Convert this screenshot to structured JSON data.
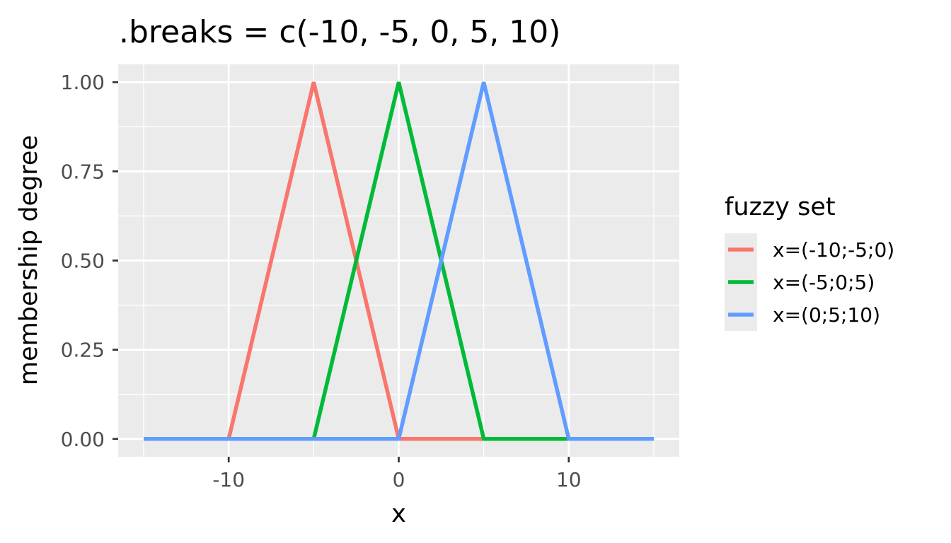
{
  "chart_data": {
    "type": "line",
    "title": ".breaks = c(-10, -5, 0, 5, 10)",
    "xlabel": "x",
    "ylabel": "membership degree",
    "xlim": [
      -16.5,
      16.5
    ],
    "ylim": [
      -0.05,
      1.05
    ],
    "x_ticks": [
      -10,
      0,
      10
    ],
    "x_tick_labels": [
      "-10",
      "0",
      "10"
    ],
    "y_ticks": [
      0,
      0.25,
      0.5,
      0.75,
      1
    ],
    "y_tick_labels": [
      "0.00",
      "0.25",
      "0.50",
      "0.75",
      "1.00"
    ],
    "x_minor_ticks": [
      -15,
      -5,
      5,
      15
    ],
    "y_minor_ticks": [
      0.125,
      0.375,
      0.625,
      0.875
    ],
    "grid": true,
    "legend": {
      "title": "fuzzy set",
      "placement": "right"
    },
    "series": [
      {
        "name": "x=(-10;-5;0)",
        "color": "#F8766D",
        "x": [
          -15,
          -10,
          -5,
          0,
          15
        ],
        "y": [
          0,
          0,
          1,
          0,
          0
        ]
      },
      {
        "name": "x=(-5;0;5)",
        "color": "#00BA38",
        "x": [
          -15,
          -5,
          0,
          5,
          15
        ],
        "y": [
          0,
          0,
          1,
          0,
          0
        ]
      },
      {
        "name": "x=(0;5;10)",
        "color": "#619CFF",
        "x": [
          -15,
          0,
          5,
          10,
          15
        ],
        "y": [
          0,
          0,
          1,
          0,
          0
        ]
      }
    ]
  }
}
